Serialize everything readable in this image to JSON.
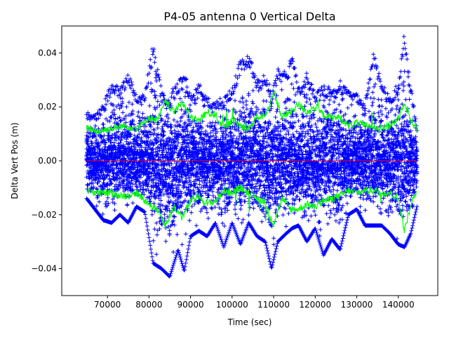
{
  "chart_data": {
    "type": "scatter",
    "title": "P4-05 antenna 0 Vertical Delta",
    "xlabel": "Time (sec)",
    "ylabel": "Delta Vert Pos (m)",
    "xlim": [
      59000,
      149500
    ],
    "ylim": [
      -0.05,
      0.05
    ],
    "xticks": [
      70000,
      80000,
      90000,
      100000,
      110000,
      120000,
      130000,
      140000
    ],
    "yticks": [
      -0.04,
      -0.02,
      0.0,
      0.02,
      0.04
    ],
    "grid": false,
    "colors": {
      "points": "#0000ff",
      "envelope": "#00ff00",
      "mean": "#ff0000"
    },
    "series": [
      {
        "name": "delta points",
        "marker": "+",
        "x_range": [
          65000,
          144500
        ],
        "x": [
          65000,
          67000,
          69000,
          71000,
          73000,
          75000,
          77000,
          79000,
          81000,
          83000,
          85000,
          87000,
          88500,
          90000,
          92000,
          94000,
          96000,
          98000,
          100000,
          102000,
          104000,
          106000,
          108000,
          109500,
          111000,
          113000,
          114500,
          116000,
          118000,
          120000,
          122000,
          124000,
          126000,
          128000,
          130000,
          132000,
          134000,
          136000,
          138000,
          140000,
          141500,
          143000,
          144500
        ],
        "y_max": [
          0.018,
          0.017,
          0.021,
          0.029,
          0.027,
          0.033,
          0.024,
          0.026,
          0.044,
          0.027,
          0.025,
          0.03,
          0.034,
          0.024,
          0.029,
          0.024,
          0.022,
          0.024,
          0.027,
          0.038,
          0.04,
          0.03,
          0.033,
          0.026,
          0.035,
          0.033,
          0.04,
          0.027,
          0.033,
          0.025,
          0.028,
          0.027,
          0.03,
          0.026,
          0.025,
          0.022,
          0.041,
          0.029,
          0.024,
          0.03,
          0.048,
          0.028,
          0.013
        ],
        "y_min": [
          -0.014,
          -0.018,
          -0.022,
          -0.023,
          -0.02,
          -0.023,
          -0.017,
          -0.019,
          -0.038,
          -0.04,
          -0.043,
          -0.033,
          -0.041,
          -0.028,
          -0.026,
          -0.028,
          -0.023,
          -0.032,
          -0.023,
          -0.031,
          -0.023,
          -0.028,
          -0.03,
          -0.04,
          -0.03,
          -0.027,
          -0.025,
          -0.024,
          -0.03,
          -0.025,
          -0.035,
          -0.029,
          -0.033,
          -0.02,
          -0.018,
          -0.024,
          -0.024,
          -0.024,
          -0.027,
          -0.031,
          -0.032,
          -0.027,
          -0.017
        ]
      },
      {
        "name": "upper envelope",
        "x": [
          65000,
          68000,
          71000,
          74000,
          77000,
          80000,
          82000,
          84000,
          86000,
          88000,
          90000,
          92000,
          94000,
          96000,
          98000,
          100000,
          102000,
          104000,
          106000,
          108000,
          109000,
          110000,
          112000,
          114000,
          116000,
          118000,
          120000,
          122000,
          124000,
          126000,
          128000,
          130000,
          132000,
          134000,
          136000,
          138000,
          140000,
          141500,
          143000,
          144500
        ],
        "y": [
          0.012,
          0.011,
          0.012,
          0.013,
          0.012,
          0.016,
          0.015,
          0.022,
          0.018,
          0.022,
          0.016,
          0.015,
          0.018,
          0.017,
          0.012,
          0.015,
          0.013,
          0.012,
          0.016,
          0.017,
          0.02,
          0.026,
          0.016,
          0.018,
          0.021,
          0.018,
          0.02,
          0.017,
          0.016,
          0.016,
          0.013,
          0.014,
          0.013,
          0.013,
          0.012,
          0.013,
          0.016,
          0.022,
          0.015,
          0.012
        ]
      },
      {
        "name": "lower envelope",
        "x": [
          65000,
          68000,
          71000,
          74000,
          77000,
          80000,
          82000,
          84000,
          86000,
          88000,
          90000,
          92000,
          94000,
          96000,
          98000,
          100000,
          102000,
          104000,
          106000,
          108000,
          109000,
          110000,
          112000,
          114000,
          116000,
          118000,
          120000,
          122000,
          124000,
          126000,
          128000,
          130000,
          132000,
          134000,
          136000,
          138000,
          140000,
          141500,
          143000,
          144500
        ],
        "y": [
          -0.011,
          -0.012,
          -0.012,
          -0.013,
          -0.012,
          -0.016,
          -0.018,
          -0.024,
          -0.017,
          -0.021,
          -0.015,
          -0.013,
          -0.016,
          -0.015,
          -0.011,
          -0.012,
          -0.01,
          -0.012,
          -0.014,
          -0.015,
          -0.021,
          -0.023,
          -0.014,
          -0.018,
          -0.018,
          -0.016,
          -0.017,
          -0.015,
          -0.014,
          -0.013,
          -0.011,
          -0.012,
          -0.011,
          -0.011,
          -0.012,
          -0.012,
          -0.014,
          -0.026,
          -0.016,
          -0.011
        ]
      },
      {
        "name": "mean",
        "x": [
          65000,
          144500
        ],
        "y": [
          0.0,
          0.0
        ]
      }
    ]
  }
}
